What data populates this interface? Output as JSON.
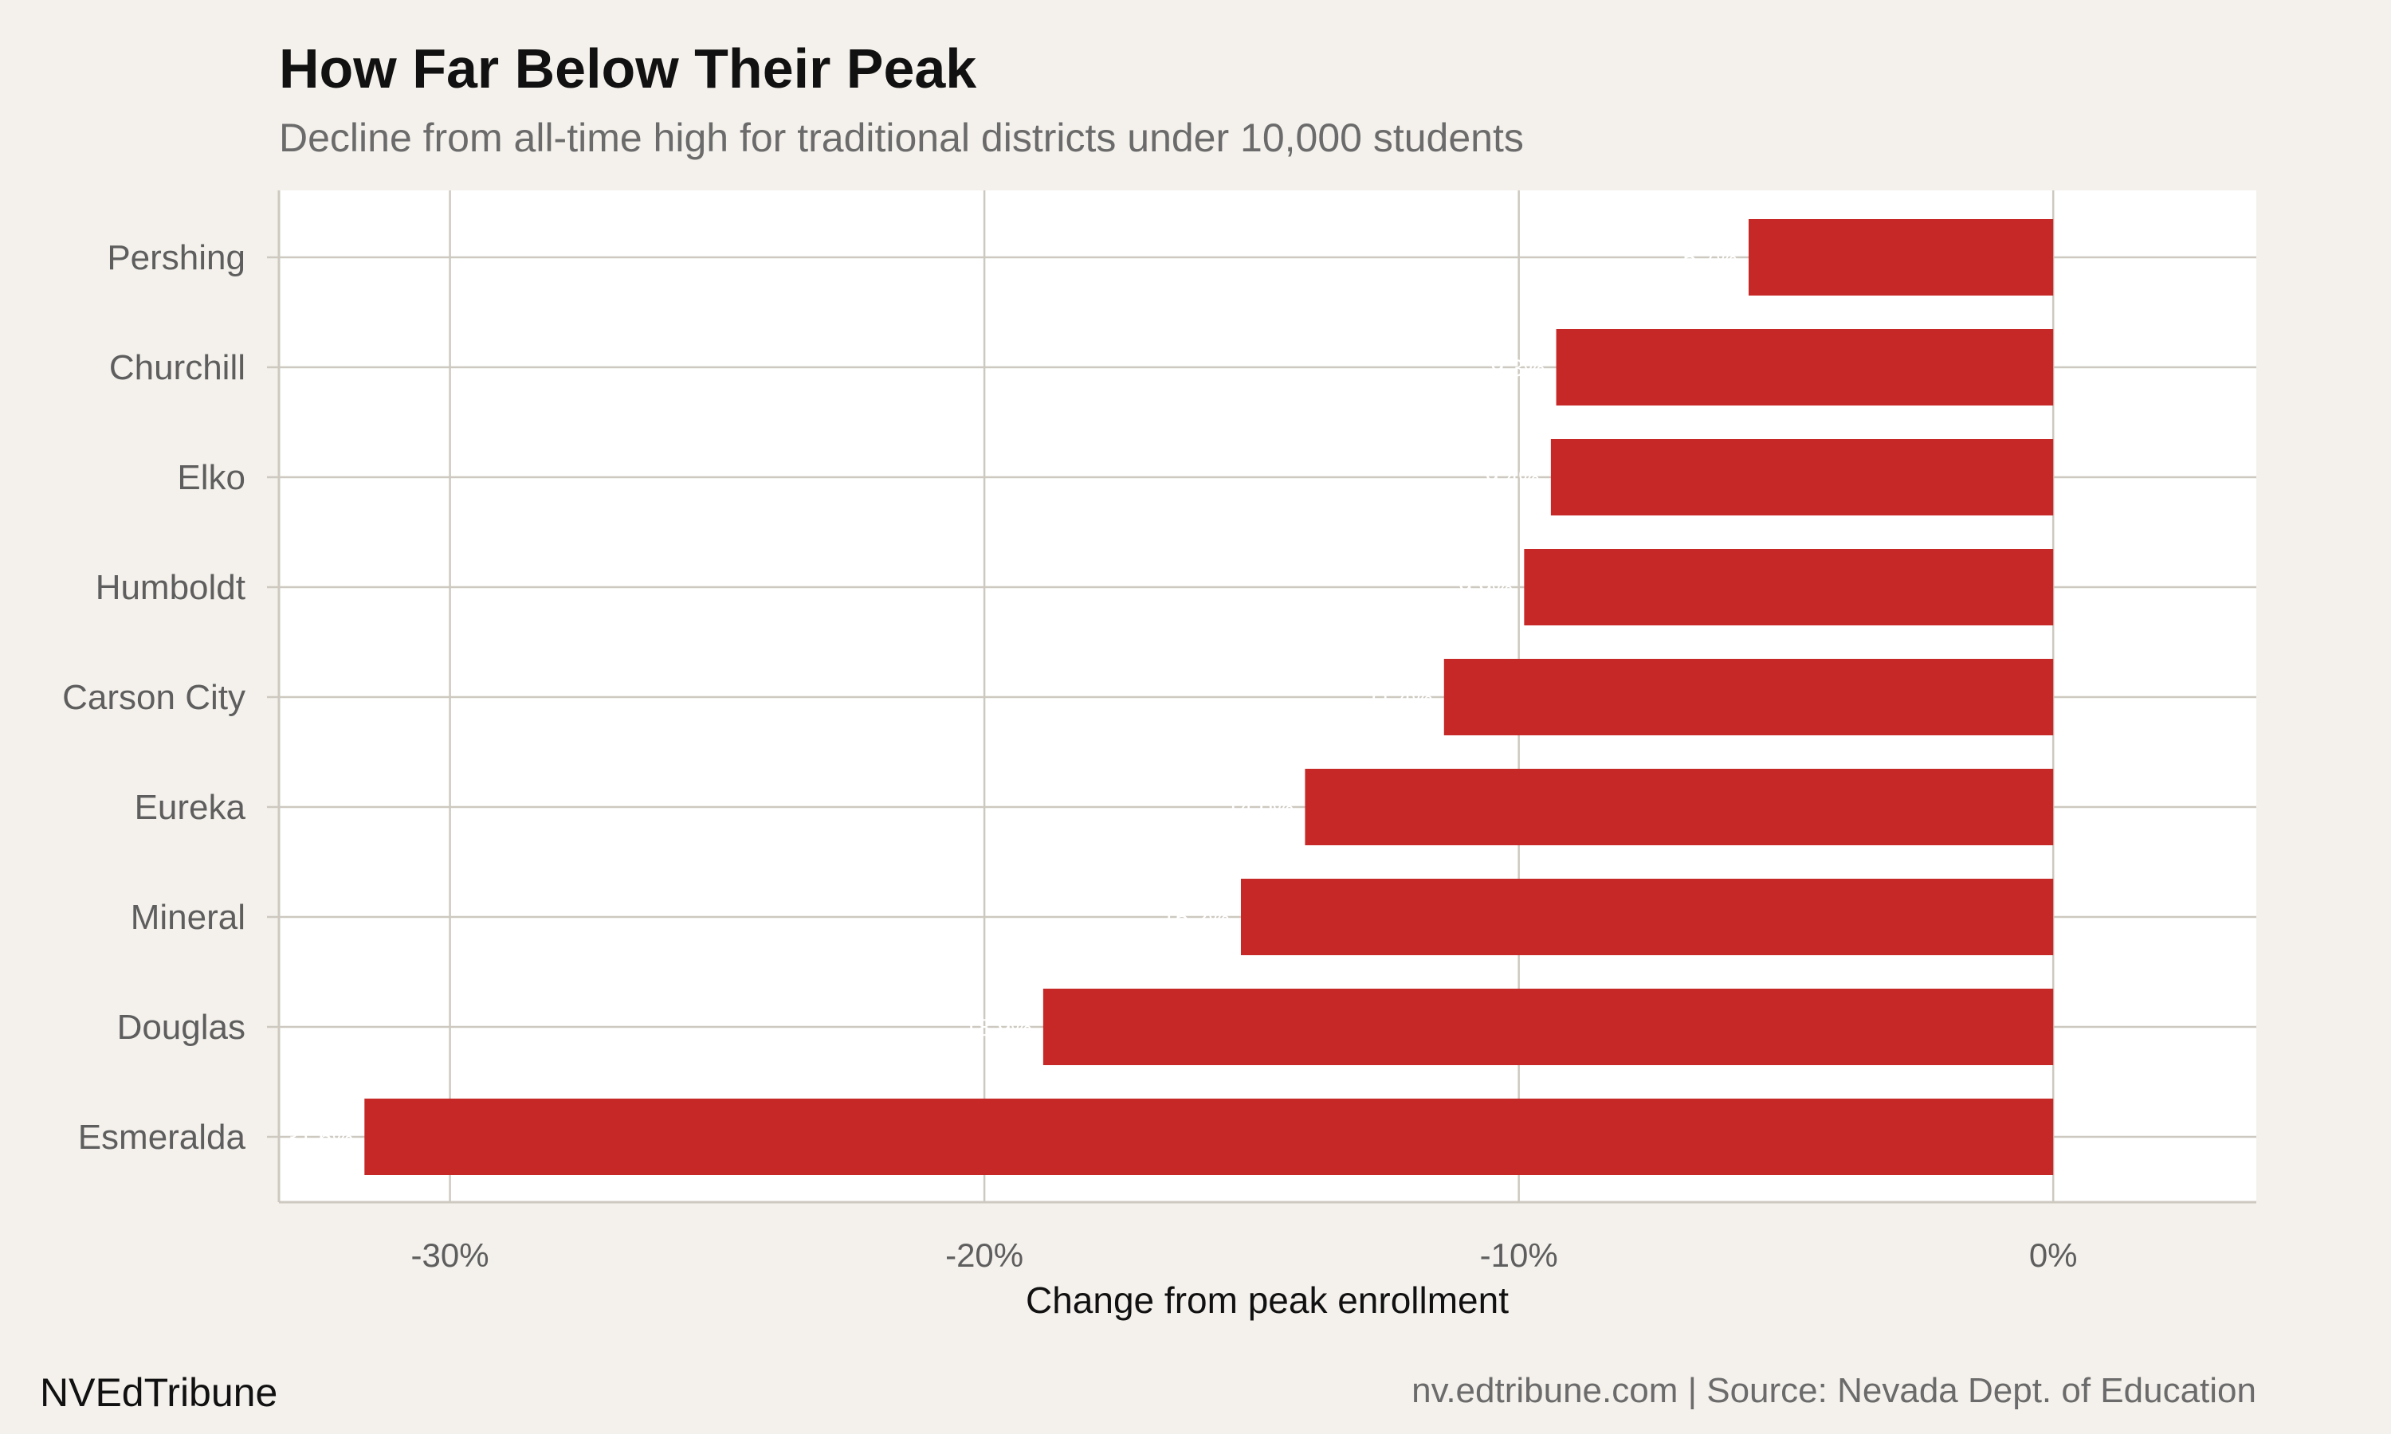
{
  "chart_data": {
    "type": "bar",
    "orientation": "horizontal",
    "title": "How Far Below Their Peak",
    "subtitle": "Decline from all-time high for traditional districts under 10,000 students",
    "xlabel": "Change from peak enrollment",
    "ylabel": "",
    "categories": [
      "Pershing",
      "Churchill",
      "Elko",
      "Humboldt",
      "Carson City",
      "Eureka",
      "Mineral",
      "Douglas",
      "Esmeralda"
    ],
    "values": [
      -5.7,
      -9.3,
      -9.4,
      -9.9,
      -11.4,
      -14.0,
      -15.2,
      -18.9,
      -31.6
    ],
    "data_labels": [
      "-5.7%",
      "-9.3%",
      "-9.4%",
      "-9.9%",
      "-11.4%",
      "-14.0%",
      "-15.2%",
      "-18.9%",
      "-31.6%"
    ],
    "xlim": [
      -33.2,
      3.8
    ],
    "xticks": [
      -30,
      -20,
      -10,
      0
    ],
    "xtick_labels": [
      "-30%",
      "-20%",
      "-10%",
      "0%"
    ],
    "grid": true,
    "legend": "none",
    "colors": {
      "bar": "#c62828",
      "panel": "#ffffff",
      "background": "#f4f1ec",
      "grid": "#cdc9c0",
      "data_label": "#ffffff"
    }
  },
  "footer": {
    "brand": "NVEdTribune",
    "source": "nv.edtribune.com | Source: Nevada Dept. of Education"
  }
}
